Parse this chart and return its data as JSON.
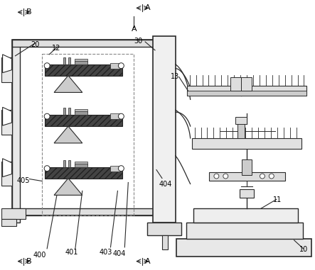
{
  "bg_color": "#ffffff",
  "line_color": "#2a2a2a",
  "dark_fill": "#555555",
  "gray_fill": "#aaaaaa",
  "light_fill": "#dddddd",
  "dashed_color": "#888888",
  "labels": {
    "B_top": "B",
    "B_bottom": "B",
    "A_top": "A",
    "A_bottom": "A",
    "A_left_top": "A",
    "n20": "20",
    "n12": "12",
    "n30": "30",
    "n13": "13",
    "n405": "405",
    "n404a": "404",
    "n404b": "404",
    "n403": "403",
    "n401": "401",
    "n400": "400",
    "n11": "11",
    "n10": "10"
  }
}
